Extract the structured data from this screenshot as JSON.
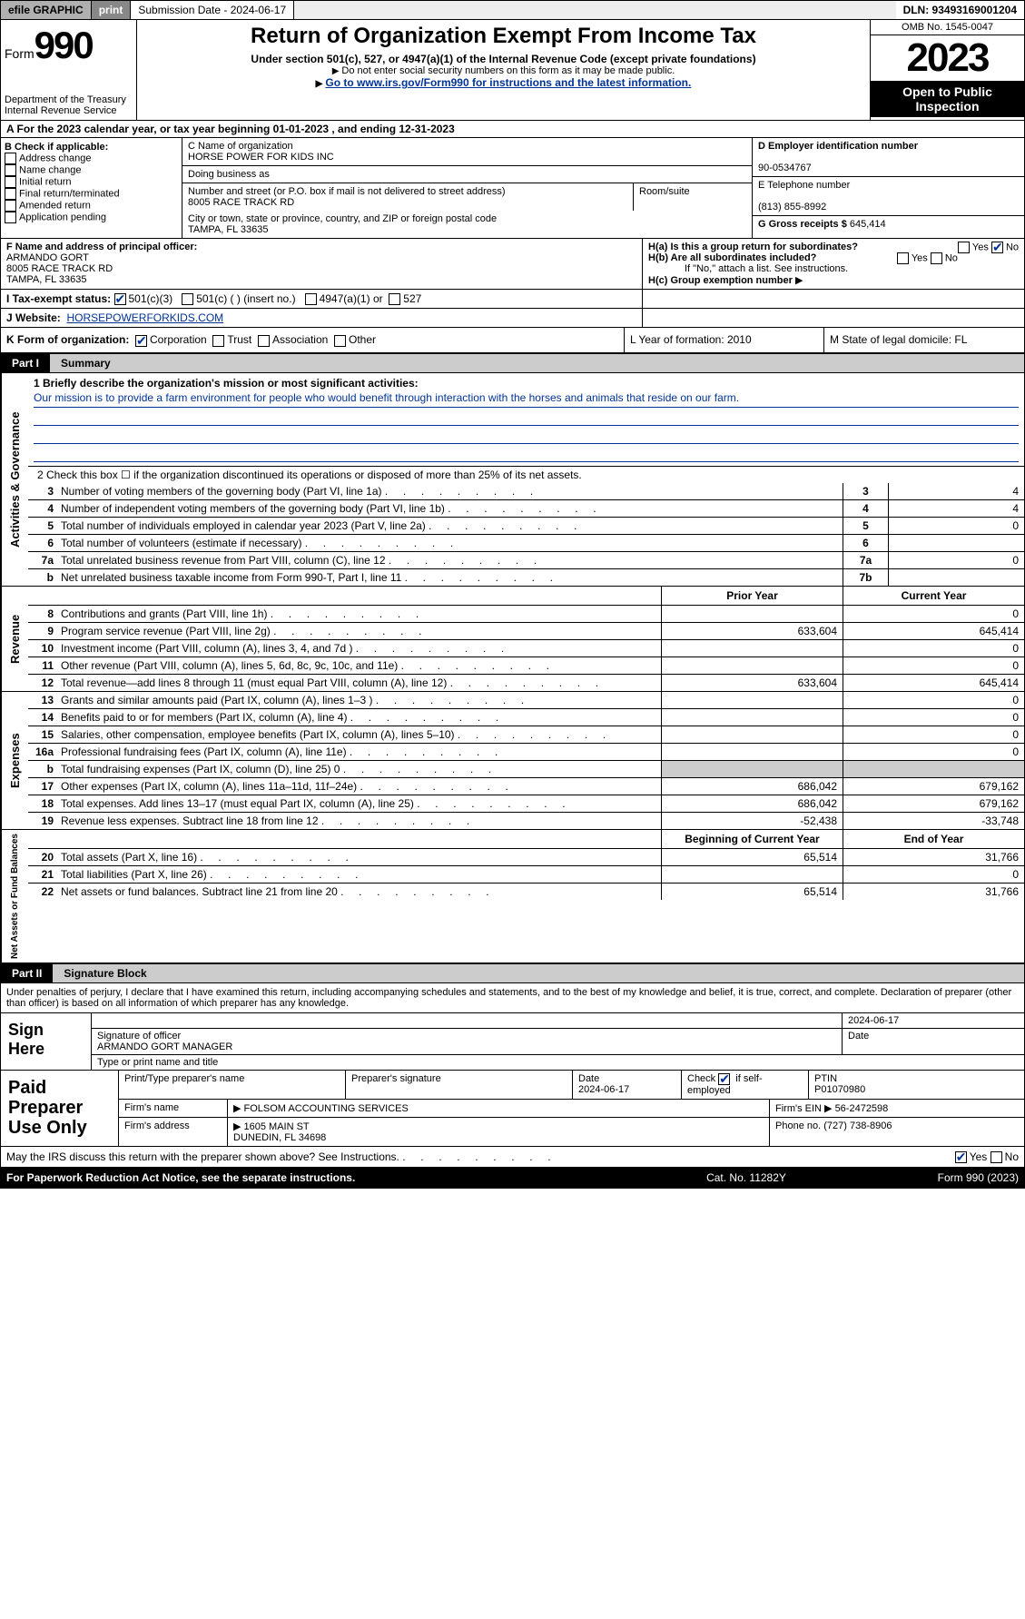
{
  "topbar": {
    "efile": "efile GRAPHIC",
    "print": "print",
    "submission": "Submission Date - 2024-06-17",
    "dln": "DLN: 93493169001204"
  },
  "header": {
    "form": "Form",
    "n990": "990",
    "dept": "Department of the Treasury\nInternal Revenue Service",
    "title": "Return of Organization Exempt From Income Tax",
    "sub1": "Under section 501(c), 527, or 4947(a)(1) of the Internal Revenue Code (except private foundations)",
    "sub2": "Do not enter social security numbers on this form as it may be made public.",
    "go": "Go to www.irs.gov/Form990 for instructions and the latest information.",
    "omb": "OMB No. 1545-0047",
    "year": "2023",
    "insp": "Open to Public Inspection"
  },
  "rowA": "A For the 2023 calendar year, or tax year beginning 01-01-2023     , and ending 12-31-2023",
  "boxB": {
    "hdr": "B Check if applicable:",
    "items": [
      "Address change",
      "Name change",
      "Initial return",
      "Final return/terminated",
      "Amended return",
      "Application pending"
    ]
  },
  "boxC": {
    "nameLbl": "C Name of organization",
    "name": "HORSE POWER FOR KIDS INC",
    "dba": "Doing business as",
    "streetLbl": "Number and street (or P.O. box if mail is not delivered to street address)",
    "street": "8005 RACE TRACK RD",
    "roomLbl": "Room/suite",
    "cityLbl": "City or town, state or province, country, and ZIP or foreign postal code",
    "city": "TAMPA, FL  33635"
  },
  "boxD": {
    "einLbl": "D Employer identification number",
    "ein": "90-0534767",
    "telLbl": "E Telephone number",
    "tel": "(813) 855-8992",
    "grossLbl": "G Gross receipts $",
    "gross": "645,414"
  },
  "boxF": {
    "lbl": "F  Name and address of principal officer:",
    "name": "ARMANDO GORT",
    "addr1": "8005 RACE TRACK RD",
    "addr2": "TAMPA, FL  33635"
  },
  "boxH": {
    "a": "H(a)  Is this a group return for subordinates?",
    "b": "H(b)  Are all subordinates included?",
    "bnote": "If \"No,\" attach a list. See instructions.",
    "c": "H(c)  Group exemption number",
    "yes": "Yes",
    "no": "No"
  },
  "rowI": {
    "lbl": "I     Tax-exempt status:",
    "o1": "501(c)(3)",
    "o2": "501(c) (  ) (insert no.)",
    "o3": "4947(a)(1) or",
    "o4": "527"
  },
  "rowJ": {
    "lbl": "J     Website:",
    "val": "HORSEPOWERFORKIDS.COM"
  },
  "rowK": {
    "lbl": "K Form of organization:",
    "o1": "Corporation",
    "o2": "Trust",
    "o3": "Association",
    "o4": "Other",
    "l": "L Year of formation: 2010",
    "m": "M State of legal domicile: FL"
  },
  "part1": {
    "num": "Part I",
    "title": "Summary"
  },
  "mission": {
    "lbl": "1   Briefly describe the organization's mission or most significant activities:",
    "text": "Our mission is to provide a farm environment for people who would benefit through interaction with the horses and animals that reside on our farm."
  },
  "line2": "2   Check this box ☐ if the organization discontinued its operations or disposed of more than 25% of its net assets.",
  "gov": {
    "side": "Activities & Governance",
    "rows": [
      {
        "n": "3",
        "l": "Number of voting members of the governing body (Part VI, line 1a)",
        "b": "3",
        "v": "4"
      },
      {
        "n": "4",
        "l": "Number of independent voting members of the governing body (Part VI, line 1b)",
        "b": "4",
        "v": "4"
      },
      {
        "n": "5",
        "l": "Total number of individuals employed in calendar year 2023 (Part V, line 2a)",
        "b": "5",
        "v": "0"
      },
      {
        "n": "6",
        "l": "Total number of volunteers (estimate if necessary)",
        "b": "6",
        "v": ""
      },
      {
        "n": "7a",
        "l": "Total unrelated business revenue from Part VIII, column (C), line 12",
        "b": "7a",
        "v": "0"
      },
      {
        "n": "b",
        "l": "Net unrelated business taxable income from Form 990-T, Part I, line 11",
        "b": "7b",
        "v": ""
      }
    ]
  },
  "yrhdr": {
    "py": "Prior Year",
    "cy": "Current Year"
  },
  "rev": {
    "side": "Revenue",
    "rows": [
      {
        "n": "8",
        "l": "Contributions and grants (Part VIII, line 1h)",
        "py": "",
        "cy": "0"
      },
      {
        "n": "9",
        "l": "Program service revenue (Part VIII, line 2g)",
        "py": "633,604",
        "cy": "645,414"
      },
      {
        "n": "10",
        "l": "Investment income (Part VIII, column (A), lines 3, 4, and 7d )",
        "py": "",
        "cy": "0"
      },
      {
        "n": "11",
        "l": "Other revenue (Part VIII, column (A), lines 5, 6d, 8c, 9c, 10c, and 11e)",
        "py": "",
        "cy": "0"
      },
      {
        "n": "12",
        "l": "Total revenue—add lines 8 through 11 (must equal Part VIII, column (A), line 12)",
        "py": "633,604",
        "cy": "645,414"
      }
    ]
  },
  "exp": {
    "side": "Expenses",
    "rows": [
      {
        "n": "13",
        "l": "Grants and similar amounts paid (Part IX, column (A), lines 1–3 )",
        "py": "",
        "cy": "0"
      },
      {
        "n": "14",
        "l": "Benefits paid to or for members (Part IX, column (A), line 4)",
        "py": "",
        "cy": "0"
      },
      {
        "n": "15",
        "l": "Salaries, other compensation, employee benefits (Part IX, column (A), lines 5–10)",
        "py": "",
        "cy": "0"
      },
      {
        "n": "16a",
        "l": "Professional fundraising fees (Part IX, column (A), line 11e)",
        "py": "",
        "cy": "0"
      },
      {
        "n": "b",
        "l": "Total fundraising expenses (Part IX, column (D), line 25) 0",
        "py": "shade",
        "cy": "shade"
      },
      {
        "n": "17",
        "l": "Other expenses (Part IX, column (A), lines 11a–11d, 11f–24e)",
        "py": "686,042",
        "cy": "679,162"
      },
      {
        "n": "18",
        "l": "Total expenses. Add lines 13–17 (must equal Part IX, column (A), line 25)",
        "py": "686,042",
        "cy": "679,162"
      },
      {
        "n": "19",
        "l": "Revenue less expenses. Subtract line 18 from line 12",
        "py": "-52,438",
        "cy": "-33,748"
      }
    ]
  },
  "nethdr": {
    "py": "Beginning of Current Year",
    "cy": "End of Year"
  },
  "net": {
    "side": "Net Assets or Fund Balances",
    "rows": [
      {
        "n": "20",
        "l": "Total assets (Part X, line 16)",
        "py": "65,514",
        "cy": "31,766"
      },
      {
        "n": "21",
        "l": "Total liabilities (Part X, line 26)",
        "py": "",
        "cy": "0"
      },
      {
        "n": "22",
        "l": "Net assets or fund balances. Subtract line 21 from line 20",
        "py": "65,514",
        "cy": "31,766"
      }
    ]
  },
  "part2": {
    "num": "Part II",
    "title": "Signature Block"
  },
  "sigdecl": "Under penalties of perjury, I declare that I have examined this return, including accompanying schedules and statements, and to the best of my knowledge and belief, it is true, correct, and complete. Declaration of preparer (other than officer) is based on all information of which preparer has any knowledge.",
  "sign": {
    "here": "Sign Here",
    "date": "2024-06-17",
    "sigof": "Signature of officer",
    "name": "ARMANDO GORT MANAGER",
    "type": "Type or print name and title",
    "datelbl": "Date"
  },
  "paid": {
    "title": "Paid Preparer Use Only",
    "r1": {
      "c1": "Print/Type preparer's name",
      "c2": "Preparer's signature",
      "c3": "Date\n2024-06-17",
      "c4": "Check ☑ if self-employed",
      "c5": "PTIN\nP01070980"
    },
    "r2": {
      "c1": "Firm's name",
      "c1v": "FOLSOM ACCOUNTING SERVICES",
      "c2": "Firm's EIN",
      "c2v": "56-2472598"
    },
    "r3": {
      "c1": "Firm's address",
      "c1v": "1605 MAIN ST\nDUNEDIN, FL  34698",
      "c2": "Phone no.",
      "c2v": "(727) 738-8906"
    }
  },
  "discuss": "May the IRS discuss this return with the preparer shown above? See Instructions.",
  "footer": {
    "l": "For Paperwork Reduction Act Notice, see the separate instructions.",
    "m": "Cat. No. 11282Y",
    "r": "Form 990 (2023)"
  }
}
